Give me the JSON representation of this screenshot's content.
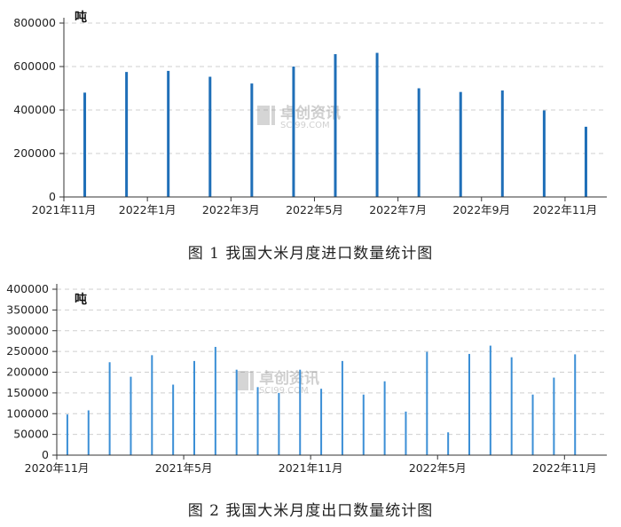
{
  "charts": [
    {
      "caption": "图 1  我国大米月度进口数量统计图",
      "unit": "吨",
      "watermark": {
        "cn": "卓创资讯",
        "en": "SCI99.COM"
      },
      "bar_color": "#1f6fb8",
      "chart_data": {
        "type": "bar",
        "categories": [
          "2021-11",
          "2021-12",
          "2022-01",
          "2022-02",
          "2022-03",
          "2022-04",
          "2022-05",
          "2022-06",
          "2022-07",
          "2022-08",
          "2022-09",
          "2022-10",
          "2022-11"
        ],
        "values": [
          480000,
          575000,
          580000,
          553000,
          522000,
          600000,
          657000,
          663000,
          500000,
          483000,
          490000,
          398000,
          323000
        ],
        "x_tick_labels": [
          "2021年11月",
          "2022年1月",
          "2022年3月",
          "2022年5月",
          "2022年7月",
          "2022年9月",
          "2022年11月"
        ],
        "y_ticks": [
          0,
          200000,
          400000,
          600000,
          800000
        ],
        "ylim": [
          0,
          800000
        ],
        "grid": true
      }
    },
    {
      "caption": "图 2  我国大米月度出口数量统计图",
      "unit": "吨",
      "watermark": {
        "cn": "卓创资讯",
        "en": "SCI99.COM"
      },
      "bar_color": "#3b8fd6",
      "chart_data": {
        "type": "bar",
        "categories": [
          "2020-11",
          "2020-12",
          "2021-01",
          "2021-02",
          "2021-03",
          "2021-04",
          "2021-05",
          "2021-06",
          "2021-07",
          "2021-08",
          "2021-09",
          "2021-10",
          "2021-11",
          "2021-12",
          "2022-01",
          "2022-02",
          "2022-03",
          "2022-04",
          "2022-05",
          "2022-06",
          "2022-07",
          "2022-08",
          "2022-09",
          "2022-10",
          "2022-11",
          "2022-12"
        ],
        "values": [
          98000,
          108000,
          224000,
          189000,
          241000,
          170000,
          227000,
          261000,
          206000,
          164000,
          150000,
          206000,
          160000,
          227000,
          146000,
          178000,
          105000,
          249000,
          55000,
          244000,
          264000,
          236000,
          146000,
          187000,
          243000,
          0
        ],
        "x_tick_labels": [
          "2020年11月",
          "2021年5月",
          "2021年11月",
          "2022年5月",
          "2022年11月"
        ],
        "y_ticks": [
          0,
          50000,
          100000,
          150000,
          200000,
          250000,
          300000,
          350000,
          400000
        ],
        "ylim": [
          0,
          400000
        ],
        "grid": true
      }
    }
  ]
}
